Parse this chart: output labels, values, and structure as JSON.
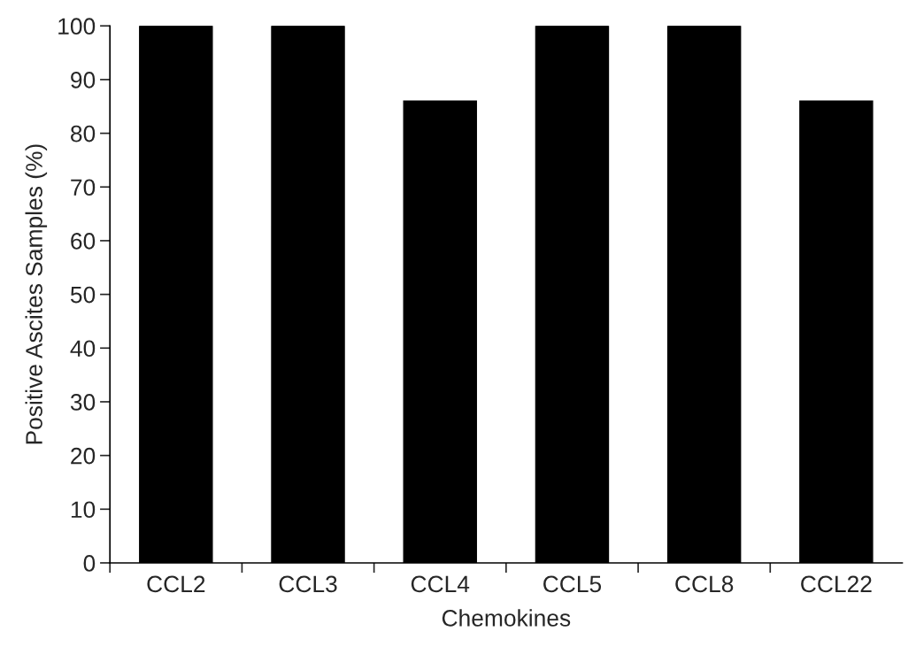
{
  "chart_data": {
    "type": "bar",
    "xlabel": "Chemokines",
    "ylabel": "Positive Ascites Samples (%)",
    "categories": [
      "CCL2",
      "CCL3",
      "CCL4",
      "CCL5",
      "CCL8",
      "CCL22"
    ],
    "values": [
      100,
      100,
      86,
      100,
      100,
      86
    ],
    "color": "#000000",
    "ylim": [
      0,
      100
    ],
    "yticks": [
      0,
      10,
      20,
      30,
      40,
      50,
      60,
      70,
      80,
      90,
      100
    ],
    "grid": false
  }
}
